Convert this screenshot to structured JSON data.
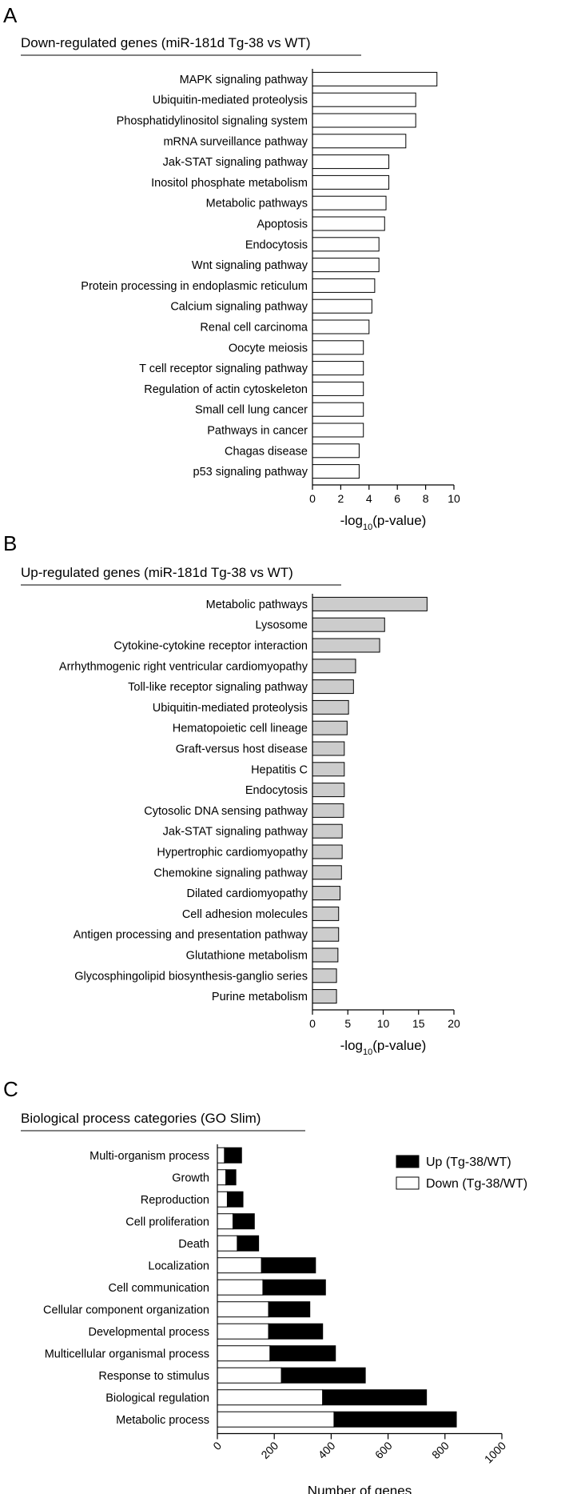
{
  "figure": {
    "panels": [
      {
        "letter": "A",
        "title": "Down-regulated genes (miR-181d Tg-38 vs WT)"
      },
      {
        "letter": "B",
        "title": "Up-regulated genes (miR-181d Tg-38 vs WT)"
      },
      {
        "letter": "C",
        "title": "Biological process categories (GO Slim)"
      }
    ]
  },
  "chart_data": [
    {
      "type": "bar",
      "orientation": "horizontal",
      "title": "Down-regulated genes (miR-181d Tg-38 vs WT)",
      "xlabel": "-log10(p-value)",
      "ylabel": "",
      "xlim": [
        0,
        10
      ],
      "xticks": [
        0,
        2,
        4,
        6,
        8,
        10
      ],
      "bar_color": "#ffffff",
      "grid": false,
      "categories": [
        "MAPK signaling pathway",
        "Ubiquitin-mediated proteolysis",
        "Phosphatidylinositol signaling system",
        "mRNA surveillance pathway",
        "Jak-STAT signaling pathway",
        "Inositol phosphate metabolism",
        "Metabolic pathways",
        "Apoptosis",
        "Endocytosis",
        "Wnt signaling pathway",
        "Protein processing in endoplasmic reticulum",
        "Calcium signaling pathway",
        "Renal cell carcinoma",
        "Oocyte meiosis",
        "T cell receptor signaling pathway",
        "Regulation of actin cytoskeleton",
        "Small cell lung cancer",
        "Pathways in cancer",
        "Chagas disease",
        "p53 signaling pathway"
      ],
      "values": [
        8.8,
        7.3,
        7.3,
        6.6,
        5.4,
        5.4,
        5.2,
        5.1,
        4.7,
        4.7,
        4.4,
        4.2,
        4.0,
        3.6,
        3.6,
        3.6,
        3.6,
        3.6,
        3.3,
        3.3
      ]
    },
    {
      "type": "bar",
      "orientation": "horizontal",
      "title": "Up-regulated genes (miR-181d Tg-38 vs WT)",
      "xlabel": "-log10(p-value)",
      "ylabel": "",
      "xlim": [
        0,
        20
      ],
      "xticks": [
        0,
        5,
        10,
        15,
        20
      ],
      "bar_color": "#cccccc",
      "grid": false,
      "categories": [
        "Metabolic pathways",
        "Lysosome",
        "Cytokine-cytokine receptor interaction",
        "Arrhythmogenic right ventricular cardiomyopathy",
        "Toll-like receptor signaling pathway",
        "Ubiquitin-mediated proteolysis",
        "Hematopoietic cell lineage",
        "Graft-versus host disease",
        "Hepatitis C",
        "Endocytosis",
        "Cytosolic DNA sensing pathway",
        "Jak-STAT signaling pathway",
        "Hypertrophic cardiomyopathy",
        "Chemokine signaling pathway",
        "Dilated cardiomyopathy",
        "Cell adhesion molecules",
        "Antigen processing and presentation pathway",
        "Glutathione metabolism",
        "Glycosphingolipid biosynthesis-ganglio series",
        "Purine metabolism"
      ],
      "values": [
        16.2,
        10.2,
        9.5,
        6.1,
        5.8,
        5.1,
        4.9,
        4.5,
        4.5,
        4.5,
        4.4,
        4.2,
        4.2,
        4.1,
        3.9,
        3.7,
        3.7,
        3.6,
        3.4,
        3.4
      ]
    },
    {
      "type": "bar",
      "orientation": "horizontal",
      "stacked": true,
      "title": "Biological process categories (GO Slim)",
      "xlabel": "Number of genes",
      "ylabel": "",
      "xlim": [
        0,
        1000
      ],
      "xticks": [
        0,
        200,
        400,
        600,
        800,
        1000
      ],
      "legend_position": "top-right",
      "grid": false,
      "categories": [
        "Multi-organism process",
        "Growth",
        "Reproduction",
        "Cell proliferation",
        "Death",
        "Localization",
        "Cell communication",
        "Cellular component organization",
        "Developmental process",
        "Multicellular organismal process",
        "Response to stimulus",
        "Biological regulation",
        "Metabolic process"
      ],
      "series": [
        {
          "name": "Down (Tg-38/WT)",
          "color": "#ffffff",
          "values": [
            25,
            30,
            35,
            55,
            70,
            155,
            160,
            180,
            180,
            185,
            225,
            370,
            410
          ]
        },
        {
          "name": "Up (Tg-38/WT)",
          "color": "#000000",
          "values": [
            60,
            35,
            55,
            75,
            75,
            190,
            220,
            145,
            190,
            230,
            295,
            365,
            430
          ]
        }
      ]
    }
  ]
}
